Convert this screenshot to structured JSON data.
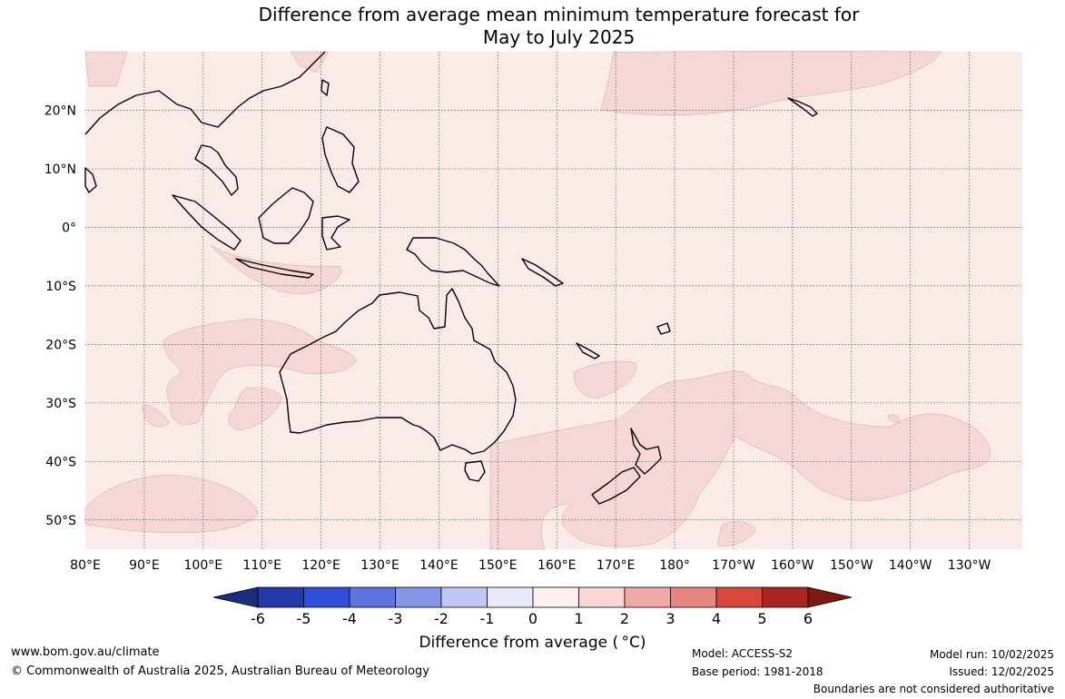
{
  "title": {
    "line1": "Difference from average mean minimum temperature forecast for",
    "line2": "May to July 2025"
  },
  "map": {
    "lon_labels": [
      "80°E",
      "90°E",
      "100°E",
      "110°E",
      "120°E",
      "130°E",
      "140°E",
      "150°E",
      "160°E",
      "170°E",
      "180°",
      "170°W",
      "160°W",
      "150°W",
      "140°W",
      "130°W"
    ],
    "lat_labels": [
      "20°N",
      "10°N",
      "0°",
      "10°S",
      "20°S",
      "30°S",
      "40°S",
      "50°S"
    ],
    "region": {
      "lon_min": 80,
      "lon_max": 239,
      "lat_min": -55,
      "lat_max": 30
    },
    "background_color": "#fbebe8",
    "anomaly_color": "#f5d8d5",
    "coast_color": "#000000"
  },
  "colorbar": {
    "title": "Difference from average ( °C)",
    "tick_labels": [
      "-6",
      "-5",
      "-4",
      "-3",
      "-2",
      "-1",
      "0",
      "1",
      "2",
      "3",
      "4",
      "5",
      "6"
    ],
    "colors": [
      "#1c2d80",
      "#2639a8",
      "#2f4fd8",
      "#5f74e0",
      "#8595e6",
      "#c0c6f2",
      "#e8eafa",
      "#fdf1ef",
      "#f7d6d3",
      "#eea9a4",
      "#e5867f",
      "#d8473a",
      "#a8261f",
      "#7c1913"
    ]
  },
  "footer": {
    "url": "www.bom.gov.au/climate",
    "copyright": "© Commonwealth of Australia 2025, Australian Bureau of Meteorology",
    "model": "Model: ACCESS-S2",
    "base_period": "Base period: 1981-2018",
    "model_run": "Model run: 10/02/2025",
    "issued": "Issued: 12/02/2025",
    "disclaimer": "Boundaries are not considered authoritative"
  }
}
